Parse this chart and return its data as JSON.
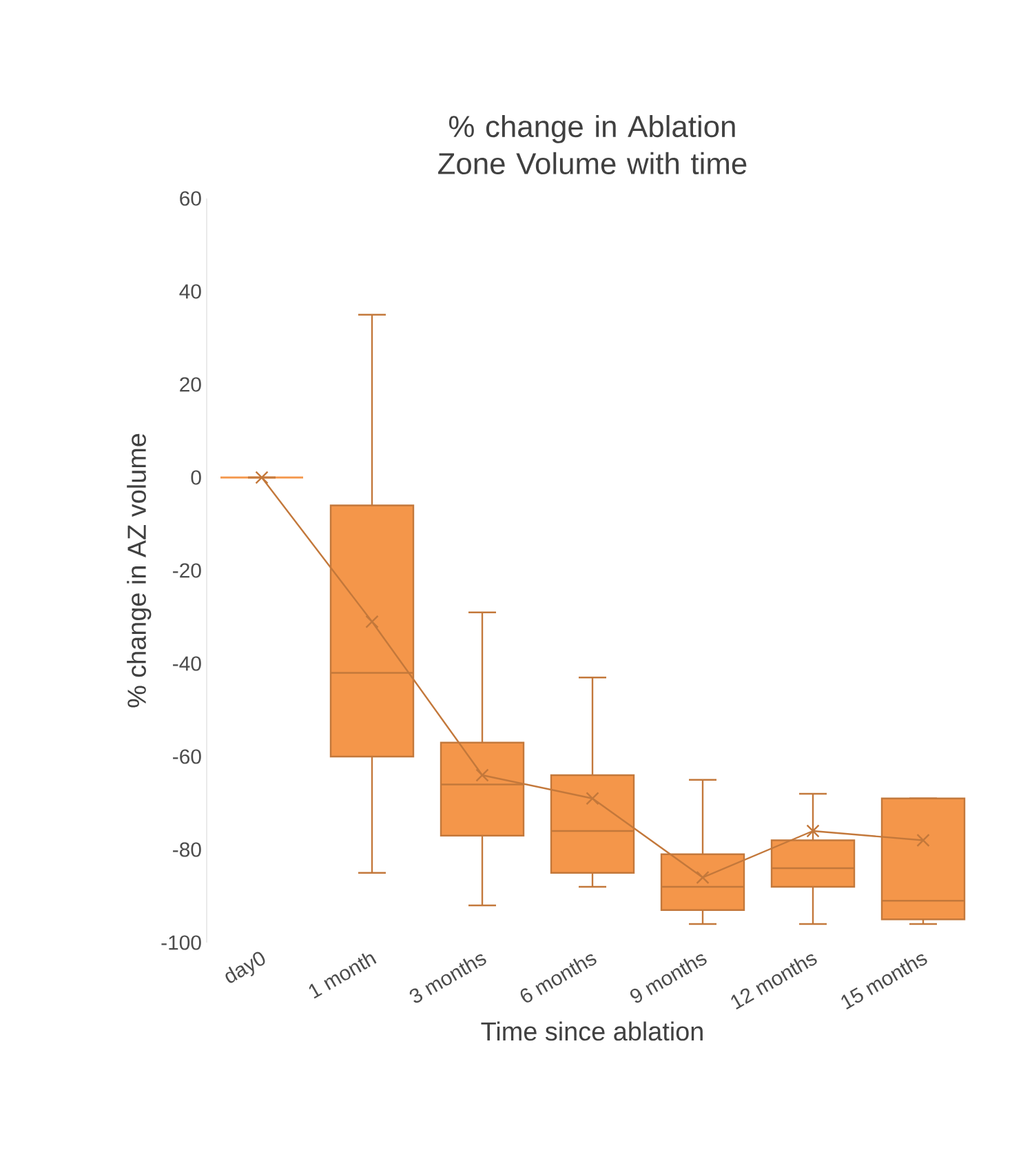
{
  "chart_data": {
    "type": "box",
    "title": "% change in Ablation Zone Volume with time",
    "xlabel": "Time since ablation",
    "ylabel": "% change in AZ volume",
    "categories": [
      "day0",
      "1 month",
      "3 months",
      "6 months",
      "9 months",
      "12 months",
      "15 months"
    ],
    "color": "#f4964a",
    "grid": false,
    "ylim": [
      -100,
      60
    ],
    "yticks": [
      -100,
      -80,
      -60,
      -40,
      -20,
      0,
      20,
      40,
      60
    ],
    "boxes": [
      {
        "low": 0,
        "q1": 0,
        "median": 0,
        "q3": 0,
        "high": 0
      },
      {
        "low": -85,
        "q1": -60,
        "median": -42,
        "q3": -6,
        "high": 35
      },
      {
        "low": -92,
        "q1": -77,
        "median": -66,
        "q3": -57,
        "high": -29
      },
      {
        "low": -88,
        "q1": -85,
        "median": -76,
        "q3": -64,
        "high": -43
      },
      {
        "low": -96,
        "q1": -93,
        "median": -88,
        "q3": -81,
        "high": -65
      },
      {
        "low": -96,
        "q1": -88,
        "median": -84,
        "q3": -78,
        "high": -68
      },
      {
        "low": -96,
        "q1": -95,
        "median": -91,
        "q3": -69,
        "high": -69
      }
    ],
    "series": [
      {
        "type": "line",
        "color": "#c3783b",
        "marker": "cross",
        "values": [
          0,
          -31,
          -64,
          -69,
          -86,
          -76,
          -78
        ]
      }
    ]
  }
}
